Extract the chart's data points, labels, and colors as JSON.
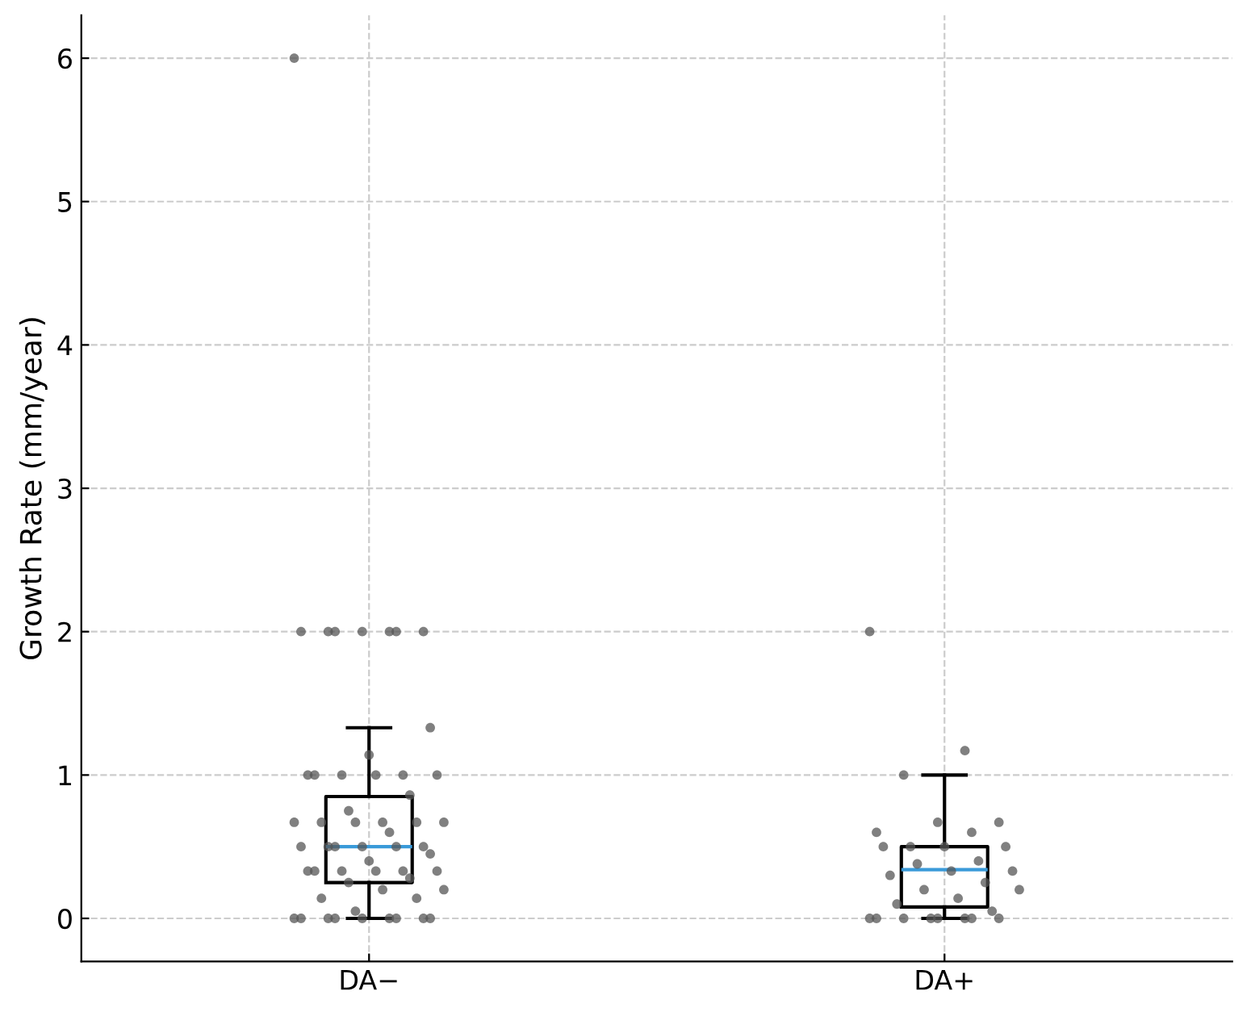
{
  "chart_data": {
    "type": "box",
    "ylabel": "Growth Rate (mm/year)",
    "categories": [
      "DA−",
      "DA+"
    ],
    "ylim": [
      -0.3,
      6.3
    ],
    "yticks": [
      0,
      1,
      2,
      3,
      4,
      5,
      6
    ],
    "grid": true,
    "series": [
      {
        "color": "#000000",
        "boxes": [
          {
            "low": 0,
            "q1": 0.25,
            "median": 0.5,
            "q3": 0.85,
            "high": 1.33
          },
          {
            "low": 0,
            "q1": 0.08,
            "median": 0.34,
            "q3": 0.5,
            "high": 1.0
          }
        ]
      },
      {
        "type": "scatter",
        "color": "#555555",
        "x": [
          "DA−",
          "DA−",
          "DA−",
          "DA−",
          "DA−",
          "DA−",
          "DA−",
          "DA−",
          "DA−",
          "DA−",
          "DA−",
          "DA−",
          "DA−",
          "DA−",
          "DA−",
          "DA−",
          "DA−",
          "DA−",
          "DA−",
          "DA−",
          "DA−",
          "DA−",
          "DA−",
          "DA−",
          "DA−",
          "DA−",
          "DA−",
          "DA−",
          "DA−",
          "DA−",
          "DA−",
          "DA−",
          "DA−",
          "DA−",
          "DA−",
          "DA−",
          "DA−",
          "DA−",
          "DA−",
          "DA−",
          "DA−",
          "DA−",
          "DA−",
          "DA−",
          "DA−",
          "DA−",
          "DA−",
          "DA−",
          "DA−",
          "DA−",
          "DA−",
          "DA−",
          "DA−",
          "DA−",
          "DA−",
          "DA+",
          "DA+",
          "DA+",
          "DA+",
          "DA+",
          "DA+",
          "DA+",
          "DA+",
          "DA+",
          "DA+",
          "DA+",
          "DA+",
          "DA+",
          "DA+",
          "DA+",
          "DA+",
          "DA+",
          "DA+",
          "DA+",
          "DA+",
          "DA+",
          "DA+",
          "DA+",
          "DA+",
          "DA+",
          "DA+",
          "DA+",
          "DA+",
          "DA+",
          "DA+"
        ],
        "values": [
          6,
          2,
          2,
          2,
          2,
          2,
          2,
          2,
          1.33,
          1.14,
          1,
          1,
          1,
          1,
          1,
          1,
          0.86,
          0.75,
          0.67,
          0.67,
          0.67,
          0.67,
          0.67,
          0.67,
          0.6,
          0.5,
          0.5,
          0.5,
          0.5,
          0.5,
          0.5,
          0.45,
          0.4,
          0.33,
          0.33,
          0.33,
          0.33,
          0.33,
          0.33,
          0.28,
          0.25,
          0.2,
          0.2,
          0.14,
          0.14,
          0.05,
          0,
          0,
          0,
          0,
          0,
          0,
          0,
          0,
          0,
          2,
          1.17,
          1.0,
          0.67,
          0.67,
          0.6,
          0.6,
          0.5,
          0.5,
          0.5,
          0.5,
          0.4,
          0.38,
          0.33,
          0.33,
          0.3,
          0.25,
          0.2,
          0.2,
          0.14,
          0.1,
          0.05,
          0,
          0,
          0,
          0,
          0,
          0,
          0,
          0
        ]
      }
    ]
  }
}
